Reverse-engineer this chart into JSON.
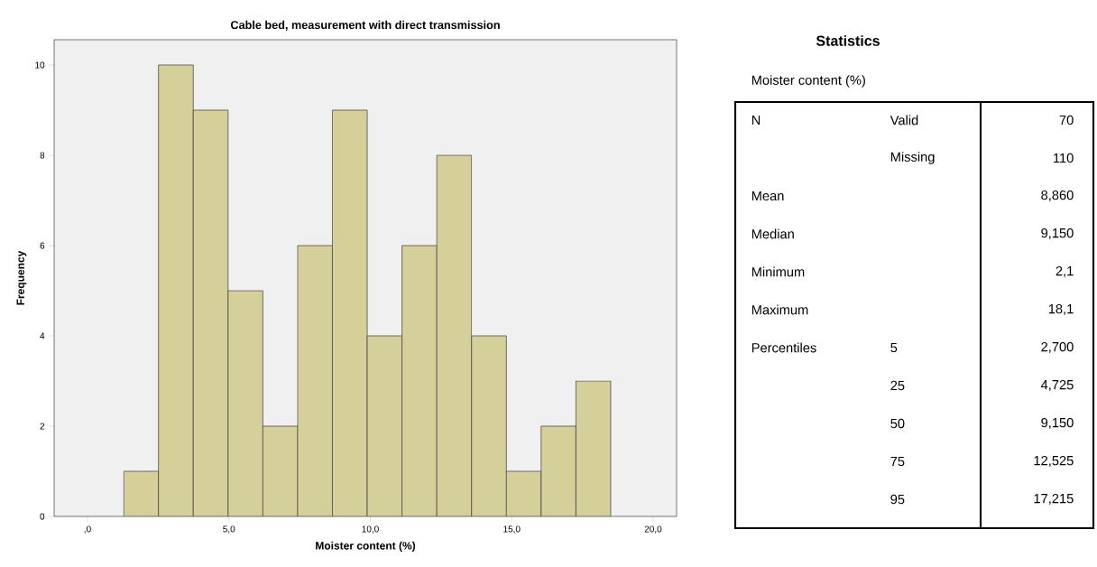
{
  "chart_data": [
    {
      "type": "histogram",
      "title": "Cable bed, measurement with direct transmission",
      "xlabel": "Moister content (%)",
      "ylabel": "Frequency",
      "bins": [
        1.28,
        2.51,
        3.74,
        4.97,
        6.2,
        7.43,
        8.66,
        9.89,
        11.12,
        12.35,
        13.58,
        14.81,
        16.04,
        17.27,
        18.5
      ],
      "values": [
        1,
        10,
        9,
        5,
        2,
        6,
        9,
        4,
        6,
        8,
        4,
        1,
        2,
        3
      ],
      "color": "#d5d09a",
      "xlim": [
        -1.18,
        20.83
      ],
      "ylim": [
        0,
        10.56
      ],
      "xticks": [
        {
          "value": 0,
          "label": ",0"
        },
        {
          "value": 5,
          "label": "5,0"
        },
        {
          "value": 10,
          "label": "10,0"
        },
        {
          "value": 15,
          "label": "15,0"
        },
        {
          "value": 20,
          "label": "20,0"
        }
      ],
      "yticks": [
        0,
        2,
        4,
        6,
        8,
        10
      ]
    },
    {
      "type": "other",
      "title": "Statistics",
      "subtitle": "Moister content (%)",
      "annotations": [
        "N",
        "Valid",
        "70",
        null,
        "Missing",
        "110",
        "Mean",
        null,
        "8,860",
        "Median",
        null,
        "9,150",
        "Minimum",
        null,
        "2,1",
        "Maximum",
        null,
        "18,1",
        "Percentiles",
        "5",
        "2,700",
        null,
        "25",
        "4,725",
        null,
        "50",
        "9,150",
        null,
        "75",
        "12,525",
        null,
        "95",
        "17,215"
      ]
    }
  ]
}
